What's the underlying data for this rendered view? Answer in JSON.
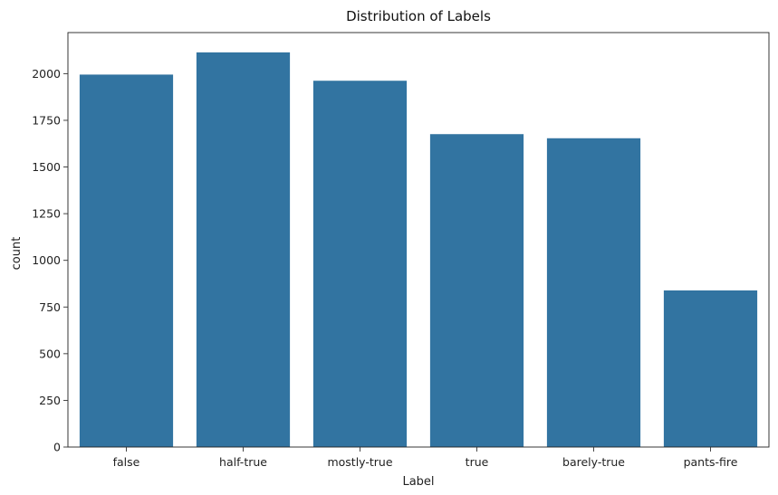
{
  "chart_data": {
    "type": "bar",
    "title": "Distribution of Labels",
    "xlabel": "Label",
    "ylabel": "count",
    "categories": [
      "false",
      "half-true",
      "mostly-true",
      "true",
      "barely-true",
      "pants-fire"
    ],
    "values": [
      1995,
      2114,
      1962,
      1676,
      1654,
      839
    ],
    "ylim": [
      0,
      2220
    ],
    "yticks": [
      0,
      250,
      500,
      750,
      1000,
      1250,
      1500,
      1750,
      2000
    ],
    "bar_color": "#3274a1",
    "grid": false,
    "legend": "none"
  }
}
